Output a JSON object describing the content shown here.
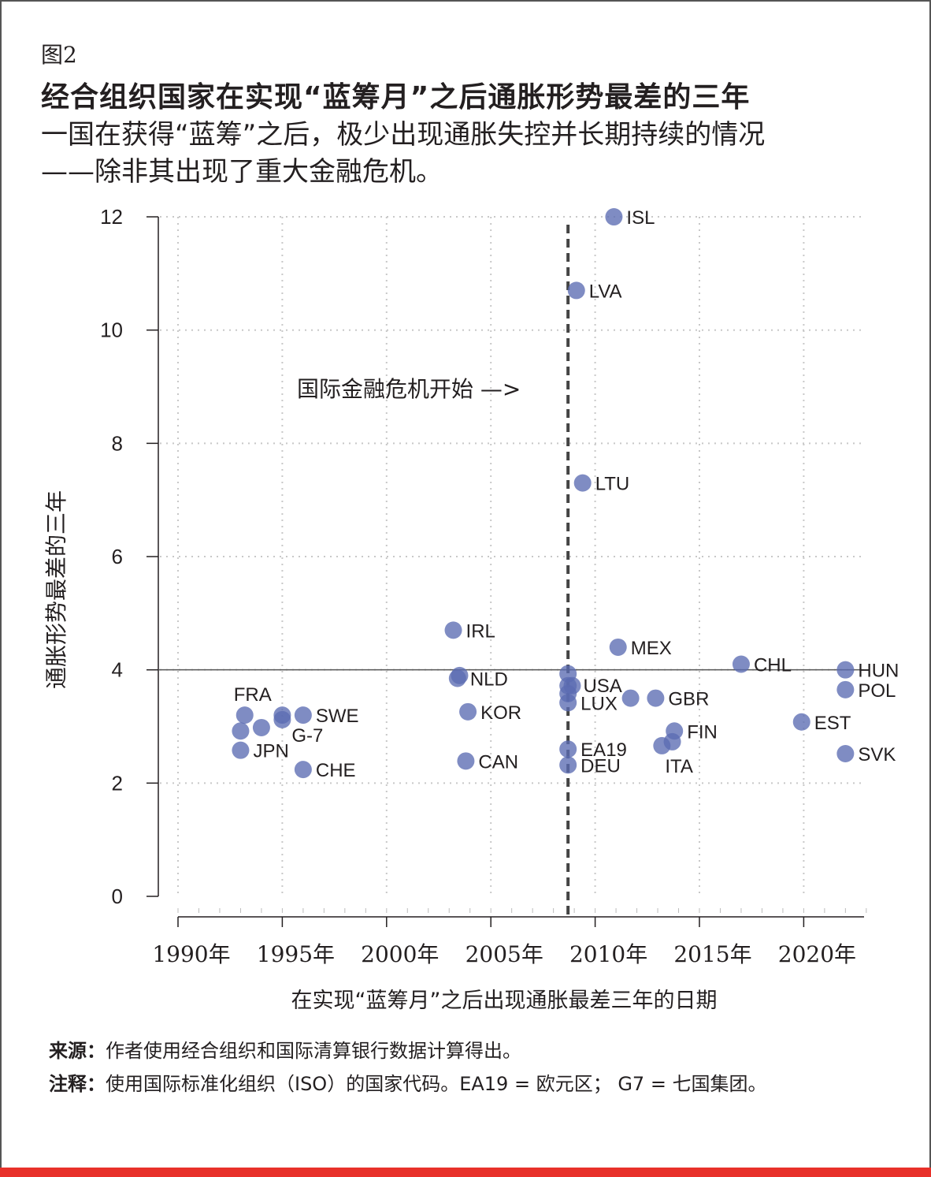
{
  "figure_label": "图2",
  "title": "经合组织国家在实现“蓝筹月”之后通胀形势最差的三年",
  "subtitle_line1": "一国在获得“蓝筹”之后，极少出现通胀失控并长期持续的情况",
  "subtitle_line2": "——除非其出现了重大金融危机。",
  "source_label": "来源：",
  "source_text": "作者使用经合组织和国际清算银行数据计算得出。",
  "note_label": "注释：",
  "note_text": "使用国际标准化组织（ISO）的国家代码。EA19 = 欧元区； G7 = 七国集团。",
  "colors": {
    "point": "#5b6bb2",
    "accent_bar": "#e8312a"
  },
  "chart_data": {
    "type": "scatter",
    "xlabel": "在实现“蓝筹月”之后出现通胀最差三年的日期",
    "ylabel": "通胀形势最差的三年",
    "xlim": [
      1990,
      2023
    ],
    "ylim": [
      0,
      12
    ],
    "x_ticks": [
      1990,
      1995,
      2000,
      2005,
      2010,
      2015,
      2020
    ],
    "x_tick_labels": [
      "1990年",
      "1995年",
      "2000年",
      "2005年",
      "2010年",
      "2015年",
      "2020年"
    ],
    "y_ticks": [
      0,
      2,
      4,
      6,
      8,
      10,
      12
    ],
    "y_tick_labels": [
      "0",
      "2",
      "4",
      "6",
      "8",
      "10",
      "12"
    ],
    "grid": "dotted",
    "reference_line_y": 4,
    "crisis_line_x": 2008.7,
    "annotation": "国际金融危机开始 —>",
    "points": [
      {
        "label": "ISL",
        "x": 2010.9,
        "y": 12.0
      },
      {
        "label": "LVA",
        "x": 2009.1,
        "y": 10.7
      },
      {
        "label": "LTU",
        "x": 2009.4,
        "y": 7.3
      },
      {
        "label": "IRL",
        "x": 2003.2,
        "y": 4.7
      },
      {
        "label": "MEX",
        "x": 2011.1,
        "y": 4.4
      },
      {
        "label": "CHL",
        "x": 2017.0,
        "y": 4.1
      },
      {
        "label": "HUN",
        "x": 2022.0,
        "y": 4.0
      },
      {
        "label": "POL",
        "x": 2022.0,
        "y": 3.65
      },
      {
        "label": "NLD",
        "x": 2003.4,
        "y": 3.85
      },
      {
        "label": "",
        "x": 2003.5,
        "y": 3.9
      },
      {
        "label": "",
        "x": 2008.7,
        "y": 3.93
      },
      {
        "label": "USA",
        "x": 2008.9,
        "y": 3.72
      },
      {
        "label": "",
        "x": 2008.7,
        "y": 3.72
      },
      {
        "label": "",
        "x": 2008.7,
        "y": 3.58
      },
      {
        "label": "LUX",
        "x": 2008.7,
        "y": 3.42
      },
      {
        "label": "",
        "x": 2011.7,
        "y": 3.5
      },
      {
        "label": "GBR",
        "x": 2012.9,
        "y": 3.5
      },
      {
        "label": "KOR",
        "x": 2003.9,
        "y": 3.26
      },
      {
        "label": "EST",
        "x": 2019.9,
        "y": 3.08
      },
      {
        "label": "FIN",
        "x": 2013.8,
        "y": 2.92
      },
      {
        "label": "",
        "x": 2013.7,
        "y": 2.73
      },
      {
        "label": "ITA",
        "x": 2013.2,
        "y": 2.66
      },
      {
        "label": "EA19",
        "x": 2008.7,
        "y": 2.6
      },
      {
        "label": "DEU",
        "x": 2008.7,
        "y": 2.32
      },
      {
        "label": "SVK",
        "x": 2022.0,
        "y": 2.52
      },
      {
        "label": "CAN",
        "x": 2003.8,
        "y": 2.39
      },
      {
        "label": "FRA",
        "x": 1993.2,
        "y": 3.2
      },
      {
        "label": "",
        "x": 1993.0,
        "y": 2.92
      },
      {
        "label": "",
        "x": 1994.0,
        "y": 2.98
      },
      {
        "label": "",
        "x": 1995.0,
        "y": 3.2
      },
      {
        "label": "G-7",
        "x": 1995.0,
        "y": 3.12
      },
      {
        "label": "SWE",
        "x": 1996.0,
        "y": 3.2
      },
      {
        "label": "JPN",
        "x": 1993.0,
        "y": 2.58
      },
      {
        "label": "CHE",
        "x": 1996.0,
        "y": 2.24
      }
    ]
  }
}
